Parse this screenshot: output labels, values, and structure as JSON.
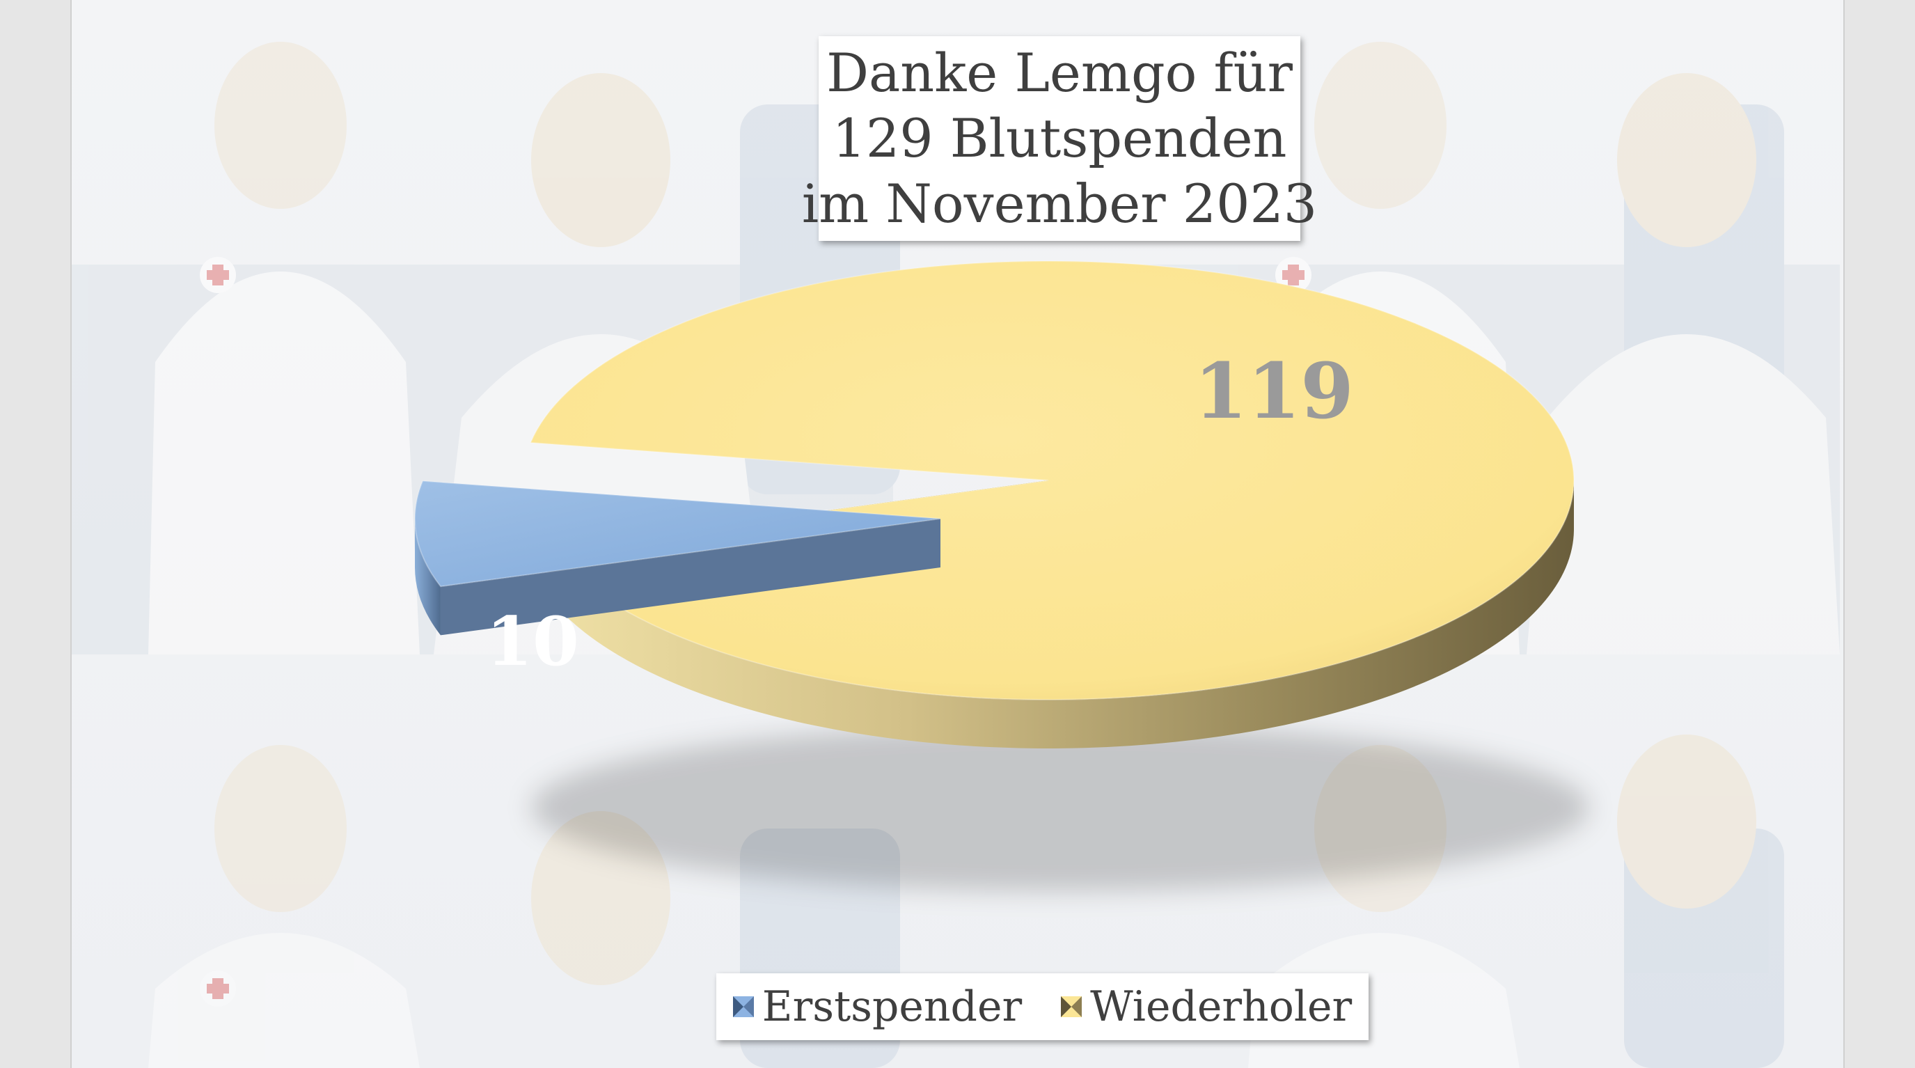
{
  "title": {
    "lines": [
      "Danke Lemgo für",
      "129 Blutspenden",
      "im November 2023"
    ]
  },
  "chart_data": {
    "type": "pie",
    "slices": [
      {
        "name": "Erstspender",
        "value": 10,
        "color": "#8db3e2"
      },
      {
        "name": "Wiederholer",
        "value": 119,
        "color": "#fbe696"
      }
    ],
    "data_labels": [
      "10",
      "119"
    ],
    "legend_position": "bottom",
    "style": "3d exploded"
  },
  "legend": [
    {
      "label": "Erstspender",
      "icon": "blue-square-icon",
      "color": "#8db3e2"
    },
    {
      "label": "Wiederholer",
      "icon": "yellow-square-icon",
      "color": "#fbe696"
    }
  ]
}
